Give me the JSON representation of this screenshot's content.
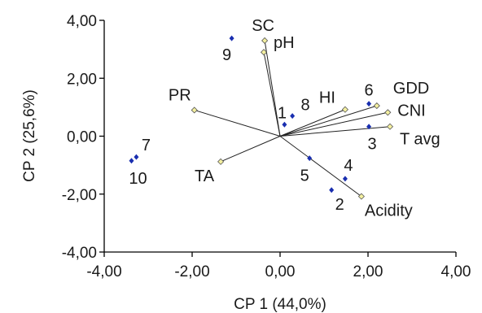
{
  "chart_data": {
    "type": "scatter",
    "subtype": "pca-biplot",
    "xlabel": "CP 1 (44,0%)",
    "ylabel": "CP 2 (25,6%)",
    "xlim": [
      -4,
      4
    ],
    "ylim": [
      -4,
      4
    ],
    "xticks": [
      "-4,00",
      "-2,00",
      "0,00",
      "2,00",
      "4,00"
    ],
    "yticks": [
      "-4,00",
      "-2,00",
      "0,00",
      "2,00",
      "4,00"
    ],
    "grid": false,
    "colors": {
      "observation": "#1a2fb0",
      "vector_end": "#f4f0a0"
    },
    "variables": [
      {
        "name": "SC",
        "x": -0.35,
        "y": 3.3
      },
      {
        "name": "pH",
        "x": -0.37,
        "y": 2.9
      },
      {
        "name": "PR",
        "x": -1.95,
        "y": 0.9
      },
      {
        "name": "HI",
        "x": 1.48,
        "y": 0.92
      },
      {
        "name": "GDD",
        "x": 2.2,
        "y": 1.05
      },
      {
        "name": "CNI",
        "x": 2.45,
        "y": 0.82
      },
      {
        "name": "T avg",
        "x": 2.5,
        "y": 0.33
      },
      {
        "name": "TA",
        "x": -1.35,
        "y": -0.88
      },
      {
        "name": "Acidity",
        "x": 1.85,
        "y": -2.08
      }
    ],
    "observations": [
      {
        "label": "1",
        "x": 0.1,
        "y": 0.4
      },
      {
        "label": "2",
        "x": 1.17,
        "y": -1.86
      },
      {
        "label": "3",
        "x": 2.02,
        "y": 0.33
      },
      {
        "label": "4",
        "x": 1.48,
        "y": -1.47
      },
      {
        "label": "5",
        "x": 0.67,
        "y": -0.76
      },
      {
        "label": "6",
        "x": 2.02,
        "y": 1.12
      },
      {
        "label": "7",
        "x": -3.27,
        "y": -0.72
      },
      {
        "label": "8",
        "x": 0.28,
        "y": 0.7
      },
      {
        "label": "9",
        "x": -1.1,
        "y": 3.38
      },
      {
        "label": "10",
        "x": -3.38,
        "y": -0.85
      }
    ]
  }
}
